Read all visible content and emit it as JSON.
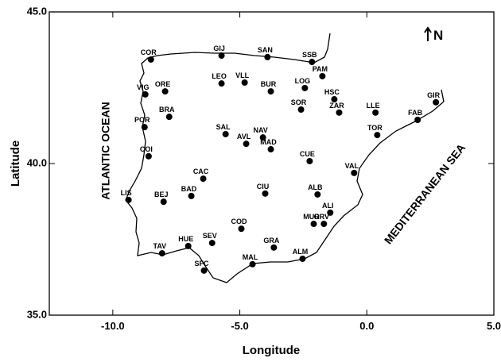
{
  "chart_data": {
    "type": "scatter",
    "x_label": "Longitude",
    "y_label": "Latitude",
    "xlim": [
      -12.5,
      5
    ],
    "ylim": [
      35,
      45
    ],
    "xticks": [
      {
        "value": -10,
        "label": "-10.0"
      },
      {
        "value": -5,
        "label": "-5.0"
      },
      {
        "value": 0,
        "label": "0.0"
      },
      {
        "value": 5,
        "label": "5.0"
      }
    ],
    "yticks": [
      {
        "value": 35,
        "label": "35.0"
      },
      {
        "value": 40,
        "label": "40.0"
      },
      {
        "value": 45,
        "label": "45.0"
      }
    ],
    "annotations": [
      "ATLANTIC OCEAN",
      "MEDITERRANEAN SEA",
      "N"
    ],
    "color": "#000000",
    "point_labels": [
      "COR",
      "GIJ",
      "SAN",
      "SSB",
      "PAM",
      "VIG",
      "ORE",
      "LEO",
      "VLL",
      "BUR",
      "LOG",
      "HSC",
      "GIR",
      "BRA",
      "POR",
      "SOR",
      "ZAR",
      "LLE",
      "FAB",
      "TOR",
      "SAL",
      "AVL",
      "NAV",
      "MAD",
      "COI",
      "CUE",
      "VAL",
      "CAC",
      "BAD",
      "CIU",
      "ALB",
      "LIS",
      "BEJ",
      "ALI",
      "MUR",
      "ORV",
      "COD",
      "SEV",
      "HUE",
      "TAV",
      "GRA",
      "ALM",
      "MAL",
      "SFC"
    ],
    "x": [
      -8.5,
      -5.72,
      -3.91,
      -2.16,
      -1.75,
      -8.72,
      -7.94,
      -5.72,
      -4.81,
      -3.78,
      -2.44,
      -1.28,
      2.72,
      -7.78,
      -8.75,
      -2.59,
      -1.09,
      0.34,
      2.0,
      0.41,
      -5.56,
      -4.75,
      -4.09,
      -3.78,
      -8.59,
      -2.25,
      -0.5,
      -6.44,
      -6.91,
      -4.0,
      -1.94,
      -9.38,
      -8.0,
      -1.44,
      -2.09,
      -1.69,
      -4.94,
      -6.09,
      -7.03,
      -8.06,
      -3.66,
      -2.53,
      -4.5,
      -6.41
    ],
    "values": [
      43.43,
      43.56,
      43.51,
      43.35,
      42.88,
      42.28,
      42.38,
      42.64,
      42.67,
      42.38,
      42.49,
      42.12,
      42.02,
      41.54,
      41.2,
      41.78,
      41.68,
      41.68,
      41.44,
      40.94,
      40.97,
      40.65,
      40.86,
      40.47,
      40.24,
      40.08,
      39.69,
      39.5,
      38.93,
      39.01,
      38.98,
      38.8,
      38.74,
      38.38,
      38.01,
      38.01,
      37.85,
      37.38,
      37.28,
      37.04,
      37.23,
      36.86,
      36.68,
      36.47
    ]
  }
}
